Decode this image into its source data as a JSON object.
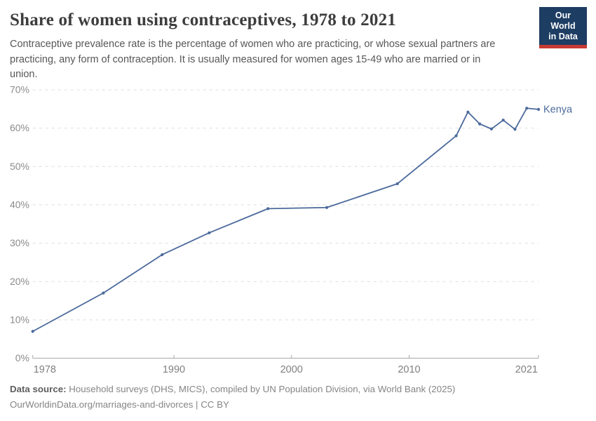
{
  "header": {
    "title": "Share of women using contraceptives, 1978 to 2021",
    "subtitle_lines": [
      "Contraceptive prevalence rate is the percentage of women who are practicing, or whose sexual partners are",
      "practicing, any form of contraception. It is usually measured for women ages 15-49 who are married or in",
      "union."
    ],
    "logo": {
      "line1": "Our World",
      "line2": "in Data"
    }
  },
  "colors": {
    "line": "#4c6a9c",
    "logo_bg": "#1d3d63",
    "logo_bar": "#c73a33",
    "gridline": "#dedede",
    "axis": "#a8a8a8"
  },
  "chart_data": {
    "type": "line",
    "title": "Share of women using contraceptives, 1978 to 2021",
    "xlabel": "",
    "ylabel": "",
    "xlim": [
      1978,
      2021
    ],
    "ylim": [
      0,
      70
    ],
    "x_ticks": [
      1978,
      1990,
      2000,
      2010,
      2021
    ],
    "y_ticks": [
      0,
      10,
      20,
      30,
      40,
      50,
      60,
      70
    ],
    "y_tick_suffix": "%",
    "grid": "horizontal-dashed",
    "legend_position": "end-of-line",
    "series": [
      {
        "name": "Kenya",
        "points": [
          [
            1978,
            7
          ],
          [
            1984,
            17
          ],
          [
            1989,
            27
          ],
          [
            1993,
            32.7
          ],
          [
            1998,
            39
          ],
          [
            2003,
            39.3
          ],
          [
            2009,
            45.5
          ],
          [
            2014,
            58
          ],
          [
            2015,
            64.2
          ],
          [
            2016,
            61.1
          ],
          [
            2017,
            59.8
          ],
          [
            2018,
            62.1
          ],
          [
            2019,
            59.7
          ],
          [
            2020,
            65.2
          ],
          [
            2021,
            64.9
          ]
        ]
      }
    ]
  },
  "footer": {
    "source_label": "Data source:",
    "source_text": " Household surveys (DHS, MICS), compiled by UN Population Division, via World Bank (2025)",
    "license_line": "OurWorldinData.org/marriages-and-divorces | CC BY"
  }
}
